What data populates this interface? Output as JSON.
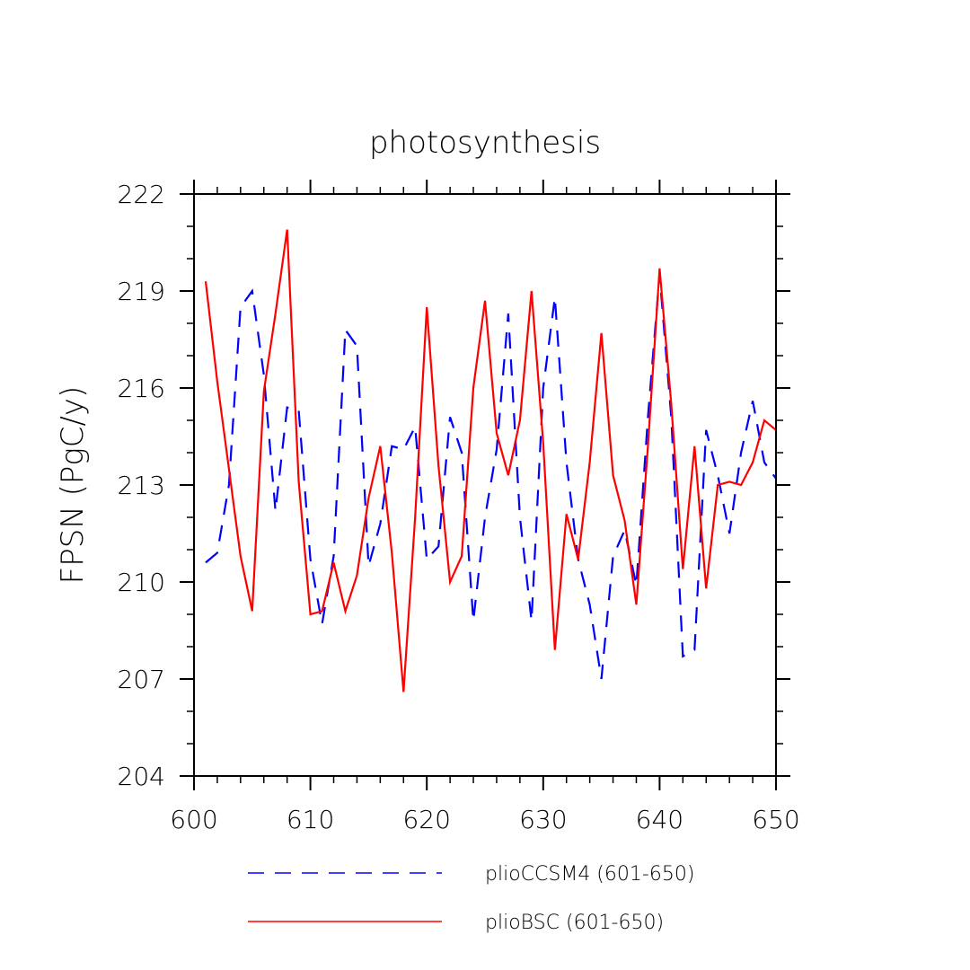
{
  "chart_data": {
    "type": "line",
    "title": "photosynthesis",
    "xlabel": "",
    "ylabel": "FPSN  (PgC/y)",
    "xlim": [
      600,
      650
    ],
    "ylim": [
      204,
      222
    ],
    "xticks": [
      600,
      610,
      620,
      630,
      640,
      650
    ],
    "yticks": [
      204,
      207,
      210,
      213,
      216,
      219,
      222
    ],
    "x_minor_step": 2,
    "y_minor_step": 1,
    "grid": false,
    "legend_position": "bottom",
    "x": [
      601,
      602,
      603,
      604,
      605,
      606,
      607,
      608,
      609,
      610,
      611,
      612,
      613,
      614,
      615,
      616,
      617,
      618,
      619,
      620,
      621,
      622,
      623,
      624,
      625,
      626,
      627,
      628,
      629,
      630,
      631,
      632,
      633,
      634,
      635,
      636,
      637,
      638,
      639,
      640,
      641,
      642,
      643,
      644,
      645,
      646,
      647,
      648,
      649,
      650
    ],
    "series": [
      {
        "name": "plioCCSM4 (601-650)",
        "color": "#0000ff",
        "style": "dashed",
        "values": [
          210.6,
          210.9,
          213.0,
          218.5,
          219.0,
          216.4,
          212.2,
          215.4,
          215.3,
          210.7,
          208.7,
          210.8,
          217.8,
          217.3,
          210.5,
          211.8,
          214.2,
          214.1,
          214.8,
          210.7,
          211.1,
          215.1,
          214.0,
          208.8,
          212.0,
          214.1,
          218.3,
          212.0,
          208.8,
          216.0,
          218.8,
          213.7,
          210.7,
          209.3,
          207.0,
          210.8,
          211.6,
          209.9,
          215.1,
          219.5,
          215.1,
          207.7,
          207.9,
          214.7,
          213.3,
          211.5,
          214.0,
          215.6,
          213.7,
          213.2
        ]
      },
      {
        "name": "plioBSC (601-650)",
        "color": "#ff0000",
        "style": "solid",
        "values": [
          219.3,
          216.2,
          213.5,
          210.8,
          209.1,
          215.9,
          218.3,
          220.9,
          213.1,
          209.0,
          209.1,
          210.6,
          209.1,
          210.2,
          212.6,
          214.2,
          210.9,
          206.6,
          212.0,
          218.5,
          213.6,
          210.0,
          210.8,
          216.0,
          218.7,
          214.6,
          213.3,
          215.0,
          219.0,
          214.3,
          207.9,
          212.1,
          210.7,
          213.7,
          217.7,
          213.3,
          211.9,
          209.3,
          214.2,
          219.7,
          215.5,
          210.4,
          214.2,
          209.8,
          213.0,
          213.1,
          213.0,
          213.7,
          215.0,
          214.7
        ]
      }
    ]
  }
}
